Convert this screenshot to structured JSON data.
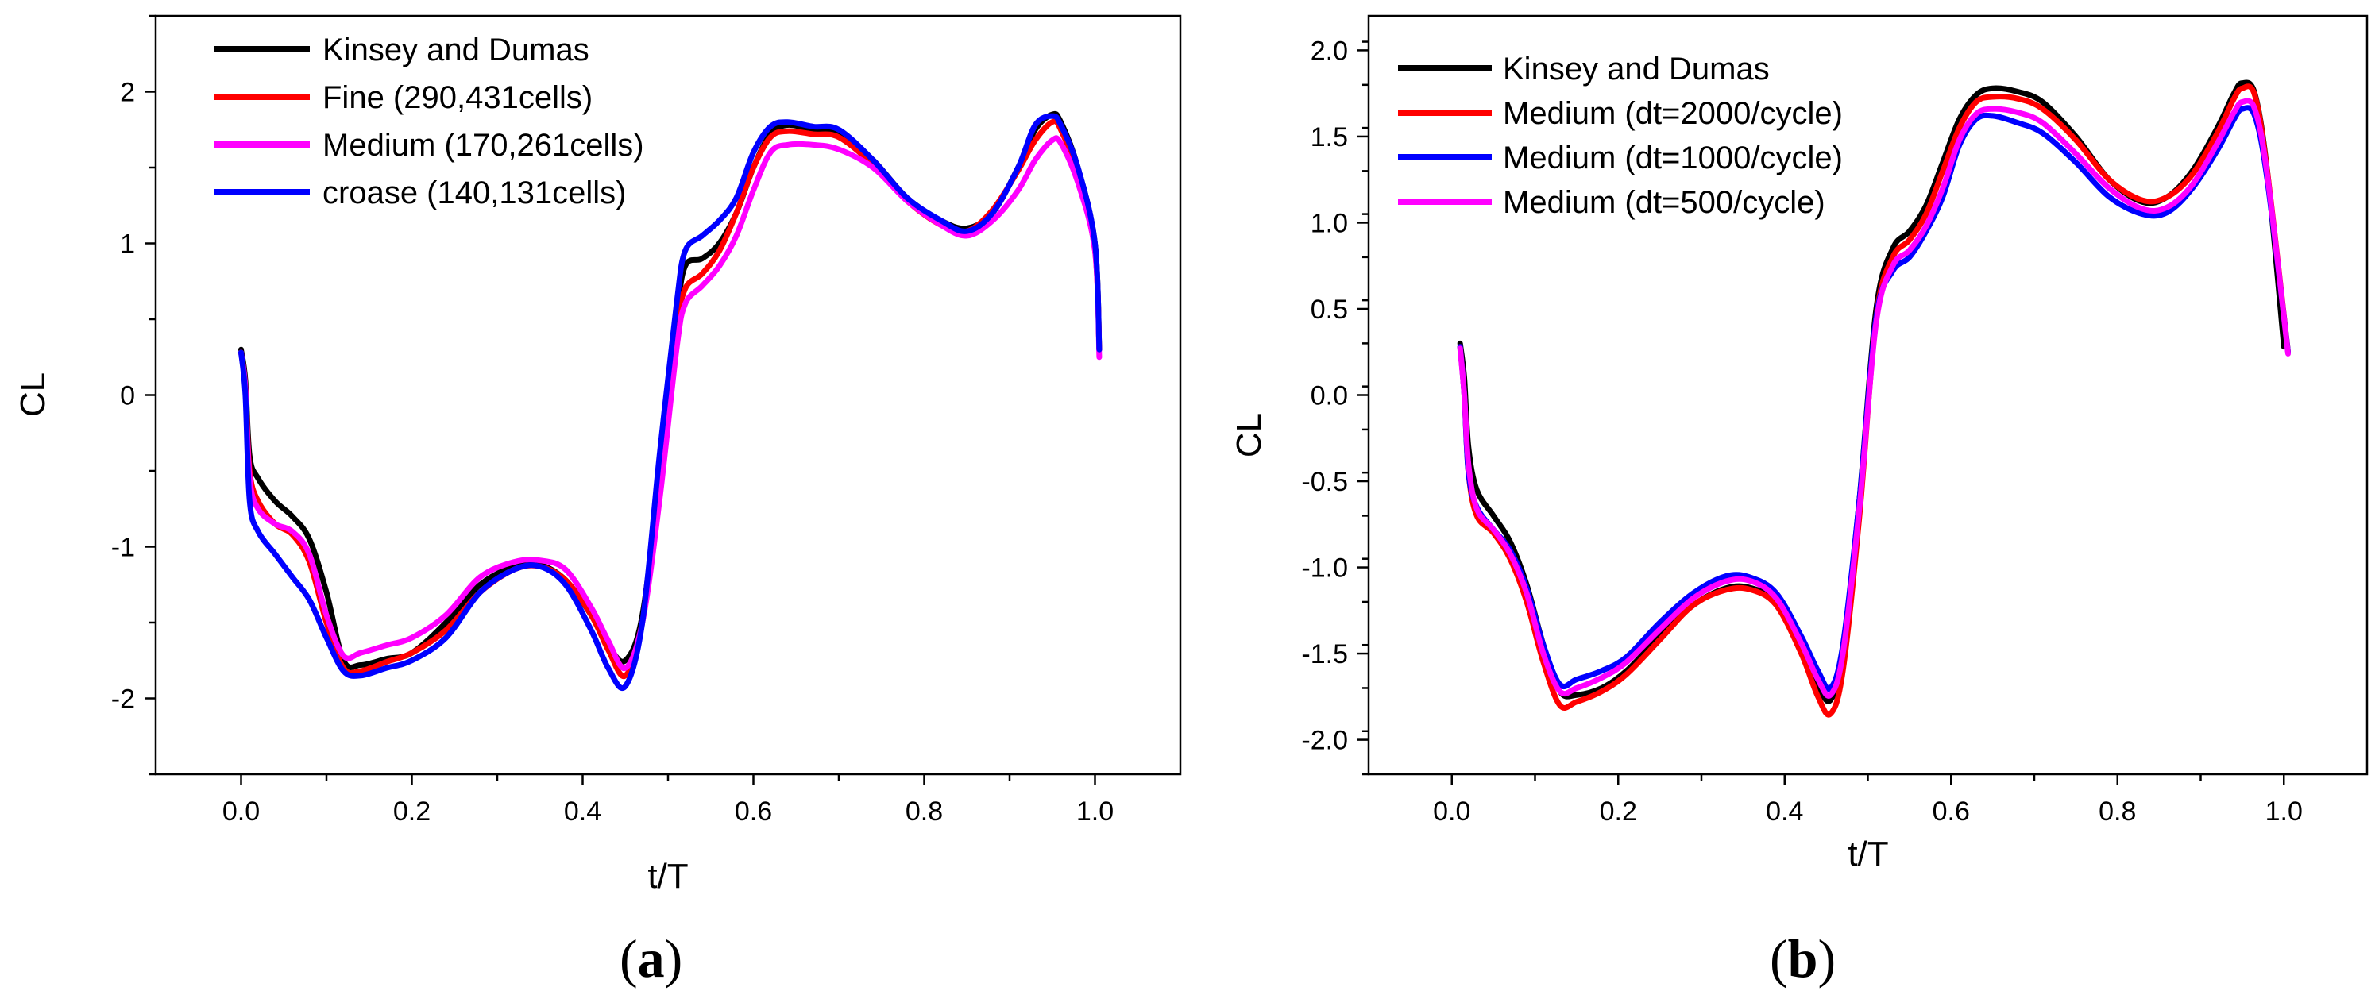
{
  "chart_data": [
    {
      "type": "line",
      "panel_label": "a",
      "title": "",
      "xlabel": "t/T",
      "ylabel": "CL",
      "xlim": [
        -0.1,
        1.1
      ],
      "ylim": [
        -2.5,
        2.5
      ],
      "xticks": [
        "0.0",
        "0.2",
        "0.4",
        "0.6",
        "0.8",
        "1.0"
      ],
      "xtick_values": [
        0.0,
        0.2,
        0.4,
        0.6,
        0.8,
        1.0
      ],
      "yticks": [
        "2",
        "1",
        "0",
        "-1",
        "-2"
      ],
      "ytick_values": [
        2,
        1,
        0,
        -1,
        -2
      ],
      "legend_position": "top-left",
      "series": [
        {
          "name": "Kinsey and Dumas",
          "color": "#000000",
          "x": [
            0.0,
            0.005,
            0.01,
            0.02,
            0.04,
            0.06,
            0.08,
            0.1,
            0.12,
            0.14,
            0.17,
            0.2,
            0.24,
            0.28,
            0.32,
            0.35,
            0.38,
            0.41,
            0.43,
            0.45,
            0.47,
            0.49,
            0.51,
            0.52,
            0.54,
            0.56,
            0.58,
            0.6,
            0.62,
            0.64,
            0.67,
            0.7,
            0.74,
            0.78,
            0.82,
            0.85,
            0.88,
            0.91,
            0.93,
            0.95,
            0.96,
            0.98,
            1.0,
            1.005
          ],
          "y": [
            0.3,
            0.1,
            -0.4,
            -0.55,
            -0.7,
            -0.8,
            -0.95,
            -1.3,
            -1.75,
            -1.78,
            -1.74,
            -1.7,
            -1.5,
            -1.25,
            -1.13,
            -1.12,
            -1.22,
            -1.45,
            -1.65,
            -1.75,
            -1.45,
            -0.5,
            0.5,
            0.85,
            0.9,
            1.0,
            1.2,
            1.5,
            1.72,
            1.78,
            1.75,
            1.73,
            1.55,
            1.3,
            1.15,
            1.1,
            1.2,
            1.5,
            1.75,
            1.85,
            1.8,
            1.5,
            1.0,
            0.3
          ]
        },
        {
          "name": "Fine (290,431cells)",
          "color": "#ff0000",
          "x": [
            0.0,
            0.005,
            0.01,
            0.02,
            0.04,
            0.06,
            0.08,
            0.1,
            0.12,
            0.14,
            0.17,
            0.2,
            0.24,
            0.28,
            0.32,
            0.35,
            0.38,
            0.41,
            0.43,
            0.45,
            0.47,
            0.49,
            0.51,
            0.52,
            0.54,
            0.56,
            0.58,
            0.6,
            0.62,
            0.64,
            0.67,
            0.7,
            0.74,
            0.78,
            0.82,
            0.85,
            0.88,
            0.91,
            0.93,
            0.95,
            0.96,
            0.98,
            1.0,
            1.005
          ],
          "y": [
            0.28,
            0.05,
            -0.5,
            -0.7,
            -0.85,
            -0.92,
            -1.1,
            -1.5,
            -1.8,
            -1.82,
            -1.76,
            -1.7,
            -1.55,
            -1.3,
            -1.15,
            -1.13,
            -1.22,
            -1.45,
            -1.68,
            -1.85,
            -1.5,
            -0.6,
            0.4,
            0.7,
            0.8,
            0.95,
            1.2,
            1.5,
            1.7,
            1.74,
            1.72,
            1.7,
            1.52,
            1.28,
            1.12,
            1.08,
            1.22,
            1.48,
            1.68,
            1.8,
            1.75,
            1.45,
            0.95,
            0.3
          ]
        },
        {
          "name": "Medium (170,261cells)",
          "color": "#ff00ff",
          "x": [
            0.0,
            0.005,
            0.01,
            0.02,
            0.04,
            0.06,
            0.08,
            0.1,
            0.12,
            0.14,
            0.17,
            0.2,
            0.24,
            0.28,
            0.32,
            0.35,
            0.38,
            0.41,
            0.43,
            0.45,
            0.47,
            0.49,
            0.51,
            0.52,
            0.54,
            0.56,
            0.58,
            0.6,
            0.62,
            0.64,
            0.67,
            0.7,
            0.74,
            0.78,
            0.82,
            0.85,
            0.88,
            0.91,
            0.93,
            0.95,
            0.96,
            0.98,
            1.0,
            1.005
          ],
          "y": [
            0.28,
            0.05,
            -0.55,
            -0.75,
            -0.85,
            -0.9,
            -1.05,
            -1.45,
            -1.72,
            -1.7,
            -1.65,
            -1.6,
            -1.45,
            -1.2,
            -1.1,
            -1.09,
            -1.15,
            -1.4,
            -1.62,
            -1.8,
            -1.5,
            -0.7,
            0.3,
            0.6,
            0.72,
            0.85,
            1.05,
            1.35,
            1.6,
            1.65,
            1.65,
            1.62,
            1.5,
            1.28,
            1.12,
            1.05,
            1.15,
            1.35,
            1.55,
            1.68,
            1.66,
            1.4,
            0.95,
            0.25
          ]
        },
        {
          "name": "croase (140,131cells)",
          "color": "#0000ff",
          "x": [
            0.0,
            0.005,
            0.01,
            0.02,
            0.04,
            0.06,
            0.08,
            0.1,
            0.12,
            0.14,
            0.17,
            0.2,
            0.24,
            0.28,
            0.32,
            0.35,
            0.38,
            0.41,
            0.43,
            0.45,
            0.47,
            0.49,
            0.51,
            0.52,
            0.54,
            0.56,
            0.58,
            0.6,
            0.62,
            0.64,
            0.67,
            0.7,
            0.74,
            0.78,
            0.82,
            0.85,
            0.88,
            0.91,
            0.93,
            0.95,
            0.96,
            0.98,
            1.0,
            1.005
          ],
          "y": [
            0.28,
            0.0,
            -0.7,
            -0.9,
            -1.05,
            -1.2,
            -1.35,
            -1.6,
            -1.82,
            -1.85,
            -1.8,
            -1.75,
            -1.6,
            -1.3,
            -1.15,
            -1.13,
            -1.25,
            -1.55,
            -1.8,
            -1.92,
            -1.5,
            -0.4,
            0.6,
            0.95,
            1.05,
            1.15,
            1.3,
            1.6,
            1.77,
            1.8,
            1.77,
            1.75,
            1.55,
            1.3,
            1.15,
            1.08,
            1.2,
            1.5,
            1.78,
            1.84,
            1.78,
            1.5,
            1.0,
            0.3
          ]
        }
      ]
    },
    {
      "type": "line",
      "panel_label": "b",
      "title": "",
      "xlabel": "t/T",
      "ylabel": "CL",
      "xlim": [
        -0.1,
        1.1
      ],
      "ylim": [
        -2.2,
        2.2
      ],
      "xticks": [
        "0.0",
        "0.2",
        "0.4",
        "0.6",
        "0.8",
        "1.0"
      ],
      "xtick_values": [
        0.0,
        0.2,
        0.4,
        0.6,
        0.8,
        1.0
      ],
      "yticks": [
        "2.0",
        "1.5",
        "1.0",
        "0.5",
        "0.0",
        "-0.5",
        "-1.0",
        "-1.5",
        "-2.0"
      ],
      "ytick_values": [
        2.0,
        1.5,
        1.0,
        0.5,
        0.0,
        -0.5,
        -1.0,
        -1.5,
        -2.0
      ],
      "legend_position": "top-left",
      "series": [
        {
          "name": "Kinsey and Dumas",
          "color": "#000000",
          "x": [
            0.01,
            0.015,
            0.02,
            0.03,
            0.05,
            0.07,
            0.09,
            0.11,
            0.13,
            0.15,
            0.18,
            0.21,
            0.25,
            0.29,
            0.33,
            0.36,
            0.39,
            0.42,
            0.44,
            0.455,
            0.47,
            0.49,
            0.51,
            0.53,
            0.55,
            0.57,
            0.59,
            0.61,
            0.63,
            0.65,
            0.68,
            0.71,
            0.75,
            0.79,
            0.83,
            0.86,
            0.89,
            0.92,
            0.94,
            0.95,
            0.965,
            0.98,
            1.0
          ],
          "y": [
            0.3,
            0.1,
            -0.3,
            -0.55,
            -0.7,
            -0.85,
            -1.1,
            -1.45,
            -1.72,
            -1.74,
            -1.7,
            -1.6,
            -1.4,
            -1.22,
            -1.12,
            -1.12,
            -1.2,
            -1.45,
            -1.68,
            -1.77,
            -1.5,
            -0.6,
            0.5,
            0.85,
            0.95,
            1.1,
            1.35,
            1.6,
            1.74,
            1.78,
            1.76,
            1.7,
            1.5,
            1.25,
            1.12,
            1.15,
            1.3,
            1.55,
            1.75,
            1.81,
            1.75,
            1.3,
            0.28
          ]
        },
        {
          "name": "Medium (dt=2000/cycle)",
          "color": "#ff0000",
          "x": [
            0.01,
            0.015,
            0.02,
            0.03,
            0.05,
            0.07,
            0.09,
            0.11,
            0.13,
            0.15,
            0.18,
            0.21,
            0.25,
            0.29,
            0.33,
            0.36,
            0.39,
            0.42,
            0.44,
            0.455,
            0.47,
            0.49,
            0.51,
            0.53,
            0.55,
            0.57,
            0.59,
            0.61,
            0.63,
            0.65,
            0.68,
            0.71,
            0.75,
            0.79,
            0.83,
            0.86,
            0.89,
            0.92,
            0.94,
            0.95,
            0.965,
            0.98,
            1.005
          ],
          "y": [
            0.28,
            0.0,
            -0.45,
            -0.7,
            -0.8,
            -0.95,
            -1.2,
            -1.55,
            -1.8,
            -1.78,
            -1.72,
            -1.62,
            -1.42,
            -1.22,
            -1.13,
            -1.13,
            -1.22,
            -1.5,
            -1.75,
            -1.85,
            -1.6,
            -0.7,
            0.45,
            0.8,
            0.9,
            1.05,
            1.3,
            1.55,
            1.7,
            1.73,
            1.72,
            1.66,
            1.48,
            1.25,
            1.13,
            1.15,
            1.28,
            1.52,
            1.72,
            1.78,
            1.74,
            1.3,
            0.25
          ]
        },
        {
          "name": "Medium (dt=1000/cycle)",
          "color": "#0000ff",
          "x": [
            0.01,
            0.015,
            0.02,
            0.03,
            0.05,
            0.07,
            0.09,
            0.11,
            0.13,
            0.15,
            0.18,
            0.21,
            0.25,
            0.29,
            0.33,
            0.36,
            0.39,
            0.42,
            0.44,
            0.455,
            0.47,
            0.49,
            0.51,
            0.53,
            0.55,
            0.57,
            0.59,
            0.61,
            0.63,
            0.65,
            0.68,
            0.71,
            0.75,
            0.79,
            0.83,
            0.86,
            0.89,
            0.92,
            0.94,
            0.95,
            0.965,
            0.98,
            1.005
          ],
          "y": [
            0.28,
            0.0,
            -0.45,
            -0.65,
            -0.78,
            -0.9,
            -1.12,
            -1.45,
            -1.68,
            -1.65,
            -1.6,
            -1.52,
            -1.32,
            -1.15,
            -1.05,
            -1.06,
            -1.15,
            -1.4,
            -1.6,
            -1.7,
            -1.45,
            -0.6,
            0.45,
            0.72,
            0.8,
            0.95,
            1.15,
            1.45,
            1.6,
            1.62,
            1.58,
            1.52,
            1.35,
            1.15,
            1.05,
            1.06,
            1.2,
            1.42,
            1.6,
            1.66,
            1.62,
            1.25,
            0.25
          ]
        },
        {
          "name": "Medium (dt=500/cycle)",
          "color": "#ff00ff",
          "x": [
            0.01,
            0.015,
            0.02,
            0.03,
            0.05,
            0.07,
            0.09,
            0.11,
            0.13,
            0.15,
            0.18,
            0.21,
            0.25,
            0.29,
            0.33,
            0.36,
            0.39,
            0.42,
            0.44,
            0.455,
            0.47,
            0.49,
            0.51,
            0.53,
            0.55,
            0.57,
            0.59,
            0.61,
            0.63,
            0.65,
            0.68,
            0.71,
            0.75,
            0.79,
            0.83,
            0.86,
            0.89,
            0.92,
            0.94,
            0.95,
            0.965,
            0.98,
            1.005
          ],
          "y": [
            0.27,
            0.0,
            -0.4,
            -0.66,
            -0.78,
            -0.92,
            -1.15,
            -1.5,
            -1.72,
            -1.7,
            -1.64,
            -1.55,
            -1.36,
            -1.18,
            -1.08,
            -1.08,
            -1.18,
            -1.44,
            -1.65,
            -1.74,
            -1.5,
            -0.65,
            0.42,
            0.75,
            0.84,
            0.98,
            1.2,
            1.48,
            1.63,
            1.66,
            1.64,
            1.58,
            1.4,
            1.2,
            1.08,
            1.09,
            1.22,
            1.46,
            1.64,
            1.7,
            1.66,
            1.28,
            0.24
          ]
        }
      ]
    }
  ]
}
